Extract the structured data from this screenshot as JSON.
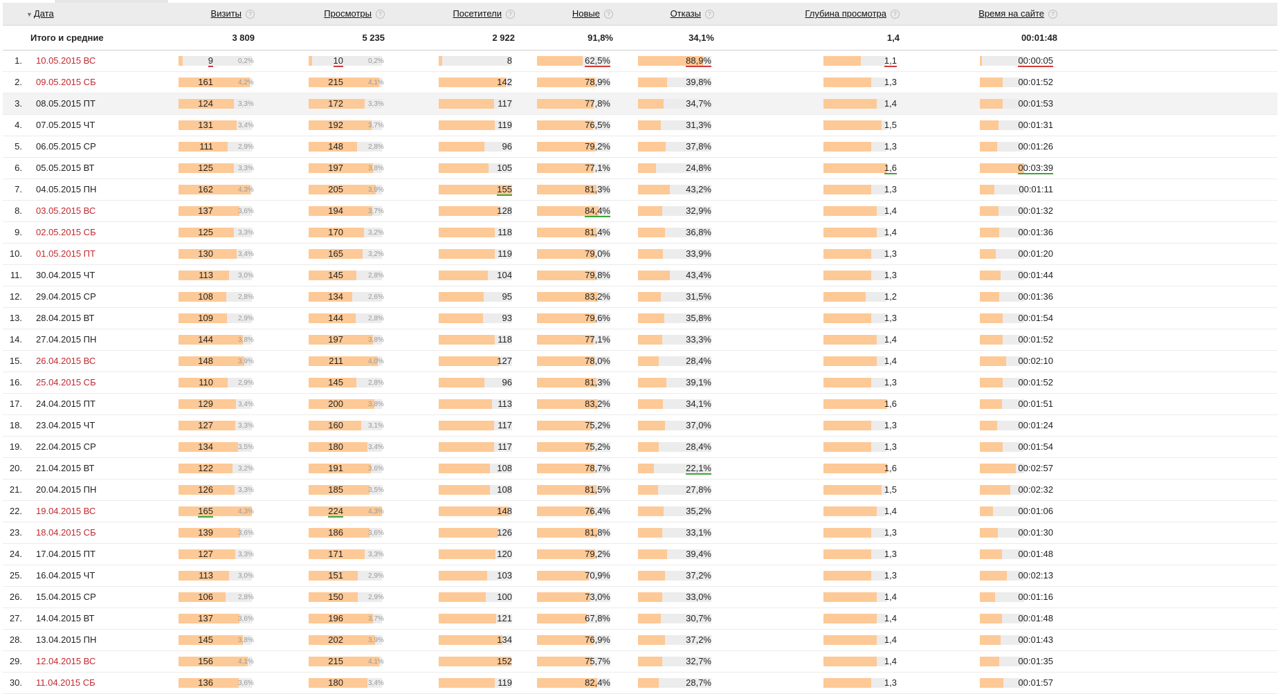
{
  "colors": {
    "bar_fill": "#fdc996",
    "bar_track": "#ececec",
    "weekend_date": "#c2282e",
    "underline_bad": "#d23a3a",
    "underline_good": "#3aa53a"
  },
  "header": {
    "sort_icon": "sort-desc-icon",
    "help_icon": "?",
    "date": "Дата",
    "visits": "Визиты",
    "views": "Просмотры",
    "visitors": "Посетители",
    "new": "Новые",
    "bounces": "Отказы",
    "depth": "Глубина просмотра",
    "time": "Время на сайте"
  },
  "totals": {
    "label": "Итого и средние",
    "visits": "3 809",
    "views": "5 235",
    "visitors": "2 922",
    "new": "91,8%",
    "bounces": "34,1%",
    "depth": "1,4",
    "time": "00:01:48"
  },
  "rows": [
    {
      "idx": "1.",
      "date": "10.05.2015 ВС",
      "weekend": true,
      "visits": "9",
      "visits_pct": "0,2%",
      "views": "10",
      "views_pct": "0,2%",
      "visitors": "8",
      "new": "62,5%",
      "bounces": "88,9%",
      "depth": "1,1",
      "time": "00:00:05"
    },
    {
      "idx": "2.",
      "date": "09.05.2015 СБ",
      "weekend": true,
      "visits": "161",
      "visits_pct": "4,2%",
      "views": "215",
      "views_pct": "4,1%",
      "visitors": "142",
      "new": "78,9%",
      "bounces": "39,8%",
      "depth": "1,3",
      "time": "00:01:52"
    },
    {
      "idx": "3.",
      "date": "08.05.2015 ПТ",
      "weekend": false,
      "visits": "124",
      "visits_pct": "3,3%",
      "views": "172",
      "views_pct": "3,3%",
      "visitors": "117",
      "new": "77,8%",
      "bounces": "34,7%",
      "depth": "1,4",
      "time": "00:01:53"
    },
    {
      "idx": "4.",
      "date": "07.05.2015 ЧТ",
      "weekend": false,
      "visits": "131",
      "visits_pct": "3,4%",
      "views": "192",
      "views_pct": "3,7%",
      "visitors": "119",
      "new": "76,5%",
      "bounces": "31,3%",
      "depth": "1,5",
      "time": "00:01:31"
    },
    {
      "idx": "5.",
      "date": "06.05.2015 СР",
      "weekend": false,
      "visits": "111",
      "visits_pct": "2,9%",
      "views": "148",
      "views_pct": "2,8%",
      "visitors": "96",
      "new": "79,2%",
      "bounces": "37,8%",
      "depth": "1,3",
      "time": "00:01:26"
    },
    {
      "idx": "6.",
      "date": "05.05.2015 ВТ",
      "weekend": false,
      "visits": "125",
      "visits_pct": "3,3%",
      "views": "197",
      "views_pct": "3,8%",
      "visitors": "105",
      "new": "77,1%",
      "bounces": "24,8%",
      "depth": "1,6",
      "time": "00:03:39"
    },
    {
      "idx": "7.",
      "date": "04.05.2015 ПН",
      "weekend": false,
      "visits": "162",
      "visits_pct": "4,3%",
      "views": "205",
      "views_pct": "3,9%",
      "visitors": "155",
      "new": "81,3%",
      "bounces": "43,2%",
      "depth": "1,3",
      "time": "00:01:11"
    },
    {
      "idx": "8.",
      "date": "03.05.2015 ВС",
      "weekend": true,
      "visits": "137",
      "visits_pct": "3,6%",
      "views": "194",
      "views_pct": "3,7%",
      "visitors": "128",
      "new": "84,4%",
      "bounces": "32,9%",
      "depth": "1,4",
      "time": "00:01:32"
    },
    {
      "idx": "9.",
      "date": "02.05.2015 СБ",
      "weekend": true,
      "visits": "125",
      "visits_pct": "3,3%",
      "views": "170",
      "views_pct": "3,2%",
      "visitors": "118",
      "new": "81,4%",
      "bounces": "36,8%",
      "depth": "1,4",
      "time": "00:01:36"
    },
    {
      "idx": "10.",
      "date": "01.05.2015 ПТ",
      "weekend": true,
      "visits": "130",
      "visits_pct": "3,4%",
      "views": "165",
      "views_pct": "3,2%",
      "visitors": "119",
      "new": "79,0%",
      "bounces": "33,9%",
      "depth": "1,3",
      "time": "00:01:20"
    },
    {
      "idx": "11.",
      "date": "30.04.2015 ЧТ",
      "weekend": false,
      "visits": "113",
      "visits_pct": "3,0%",
      "views": "145",
      "views_pct": "2,8%",
      "visitors": "104",
      "new": "79,8%",
      "bounces": "43,4%",
      "depth": "1,3",
      "time": "00:01:44"
    },
    {
      "idx": "12.",
      "date": "29.04.2015 СР",
      "weekend": false,
      "visits": "108",
      "visits_pct": "2,8%",
      "views": "134",
      "views_pct": "2,6%",
      "visitors": "95",
      "new": "83,2%",
      "bounces": "31,5%",
      "depth": "1,2",
      "time": "00:01:36"
    },
    {
      "idx": "13.",
      "date": "28.04.2015 ВТ",
      "weekend": false,
      "visits": "109",
      "visits_pct": "2,9%",
      "views": "144",
      "views_pct": "2,8%",
      "visitors": "93",
      "new": "79,6%",
      "bounces": "35,8%",
      "depth": "1,3",
      "time": "00:01:54"
    },
    {
      "idx": "14.",
      "date": "27.04.2015 ПН",
      "weekend": false,
      "visits": "144",
      "visits_pct": "3,8%",
      "views": "197",
      "views_pct": "3,8%",
      "visitors": "118",
      "new": "77,1%",
      "bounces": "33,3%",
      "depth": "1,4",
      "time": "00:01:52"
    },
    {
      "idx": "15.",
      "date": "26.04.2015 ВС",
      "weekend": true,
      "visits": "148",
      "visits_pct": "3,9%",
      "views": "211",
      "views_pct": "4,0%",
      "visitors": "127",
      "new": "78,0%",
      "bounces": "28,4%",
      "depth": "1,4",
      "time": "00:02:10"
    },
    {
      "idx": "16.",
      "date": "25.04.2015 СБ",
      "weekend": true,
      "visits": "110",
      "visits_pct": "2,9%",
      "views": "145",
      "views_pct": "2,8%",
      "visitors": "96",
      "new": "81,3%",
      "bounces": "39,1%",
      "depth": "1,3",
      "time": "00:01:52"
    },
    {
      "idx": "17.",
      "date": "24.04.2015 ПТ",
      "weekend": false,
      "visits": "129",
      "visits_pct": "3,4%",
      "views": "200",
      "views_pct": "3,8%",
      "visitors": "113",
      "new": "83,2%",
      "bounces": "34,1%",
      "depth": "1,6",
      "time": "00:01:51"
    },
    {
      "idx": "18.",
      "date": "23.04.2015 ЧТ",
      "weekend": false,
      "visits": "127",
      "visits_pct": "3,3%",
      "views": "160",
      "views_pct": "3,1%",
      "visitors": "117",
      "new": "75,2%",
      "bounces": "37,0%",
      "depth": "1,3",
      "time": "00:01:24"
    },
    {
      "idx": "19.",
      "date": "22.04.2015 СР",
      "weekend": false,
      "visits": "134",
      "visits_pct": "3,5%",
      "views": "180",
      "views_pct": "3,4%",
      "visitors": "117",
      "new": "75,2%",
      "bounces": "28,4%",
      "depth": "1,3",
      "time": "00:01:54"
    },
    {
      "idx": "20.",
      "date": "21.04.2015 ВТ",
      "weekend": false,
      "visits": "122",
      "visits_pct": "3,2%",
      "views": "191",
      "views_pct": "3,6%",
      "visitors": "108",
      "new": "78,7%",
      "bounces": "22,1%",
      "depth": "1,6",
      "time": "00:02:57"
    },
    {
      "idx": "21.",
      "date": "20.04.2015 ПН",
      "weekend": false,
      "visits": "126",
      "visits_pct": "3,3%",
      "views": "185",
      "views_pct": "3,5%",
      "visitors": "108",
      "new": "81,5%",
      "bounces": "27,8%",
      "depth": "1,5",
      "time": "00:02:32"
    },
    {
      "idx": "22.",
      "date": "19.04.2015 ВС",
      "weekend": true,
      "visits": "165",
      "visits_pct": "4,3%",
      "views": "224",
      "views_pct": "4,3%",
      "visitors": "148",
      "new": "76,4%",
      "bounces": "35,2%",
      "depth": "1,4",
      "time": "00:01:06"
    },
    {
      "idx": "23.",
      "date": "18.04.2015 СБ",
      "weekend": true,
      "visits": "139",
      "visits_pct": "3,6%",
      "views": "186",
      "views_pct": "3,6%",
      "visitors": "126",
      "new": "81,8%",
      "bounces": "33,1%",
      "depth": "1,3",
      "time": "00:01:30"
    },
    {
      "idx": "24.",
      "date": "17.04.2015 ПТ",
      "weekend": false,
      "visits": "127",
      "visits_pct": "3,3%",
      "views": "171",
      "views_pct": "3,3%",
      "visitors": "120",
      "new": "79,2%",
      "bounces": "39,4%",
      "depth": "1,3",
      "time": "00:01:48"
    },
    {
      "idx": "25.",
      "date": "16.04.2015 ЧТ",
      "weekend": false,
      "visits": "113",
      "visits_pct": "3,0%",
      "views": "151",
      "views_pct": "2,9%",
      "visitors": "103",
      "new": "70,9%",
      "bounces": "37,2%",
      "depth": "1,3",
      "time": "00:02:13"
    },
    {
      "idx": "26.",
      "date": "15.04.2015 СР",
      "weekend": false,
      "visits": "106",
      "visits_pct": "2,8%",
      "views": "150",
      "views_pct": "2,9%",
      "visitors": "100",
      "new": "73,0%",
      "bounces": "33,0%",
      "depth": "1,4",
      "time": "00:01:16"
    },
    {
      "idx": "27.",
      "date": "14.04.2015 ВТ",
      "weekend": false,
      "visits": "137",
      "visits_pct": "3,6%",
      "views": "196",
      "views_pct": "3,7%",
      "visitors": "121",
      "new": "67,8%",
      "bounces": "30,7%",
      "depth": "1,4",
      "time": "00:01:48"
    },
    {
      "idx": "28.",
      "date": "13.04.2015 ПН",
      "weekend": false,
      "visits": "145",
      "visits_pct": "3,8%",
      "views": "202",
      "views_pct": "3,9%",
      "visitors": "134",
      "new": "76,9%",
      "bounces": "37,2%",
      "depth": "1,4",
      "time": "00:01:43"
    },
    {
      "idx": "29.",
      "date": "12.04.2015 ВС",
      "weekend": true,
      "visits": "156",
      "visits_pct": "4,1%",
      "views": "215",
      "views_pct": "4,1%",
      "visitors": "152",
      "new": "75,7%",
      "bounces": "32,7%",
      "depth": "1,4",
      "time": "00:01:35"
    },
    {
      "idx": "30.",
      "date": "11.04.2015 СБ",
      "weekend": true,
      "visits": "136",
      "visits_pct": "3,6%",
      "views": "180",
      "views_pct": "3,4%",
      "visitors": "119",
      "new": "82,4%",
      "bounces": "28,7%",
      "depth": "1,3",
      "time": "00:01:57"
    }
  ],
  "highlighted_row": 3,
  "underlines": {
    "red": {
      "1": [
        "visits",
        "views",
        "new",
        "bounces",
        "depth",
        "time"
      ]
    },
    "green": {
      "6": [
        "depth",
        "time"
      ],
      "7": [
        "visitors"
      ],
      "8": [
        "new"
      ],
      "20": [
        "bounces"
      ],
      "22": [
        "visits",
        "views"
      ]
    }
  }
}
